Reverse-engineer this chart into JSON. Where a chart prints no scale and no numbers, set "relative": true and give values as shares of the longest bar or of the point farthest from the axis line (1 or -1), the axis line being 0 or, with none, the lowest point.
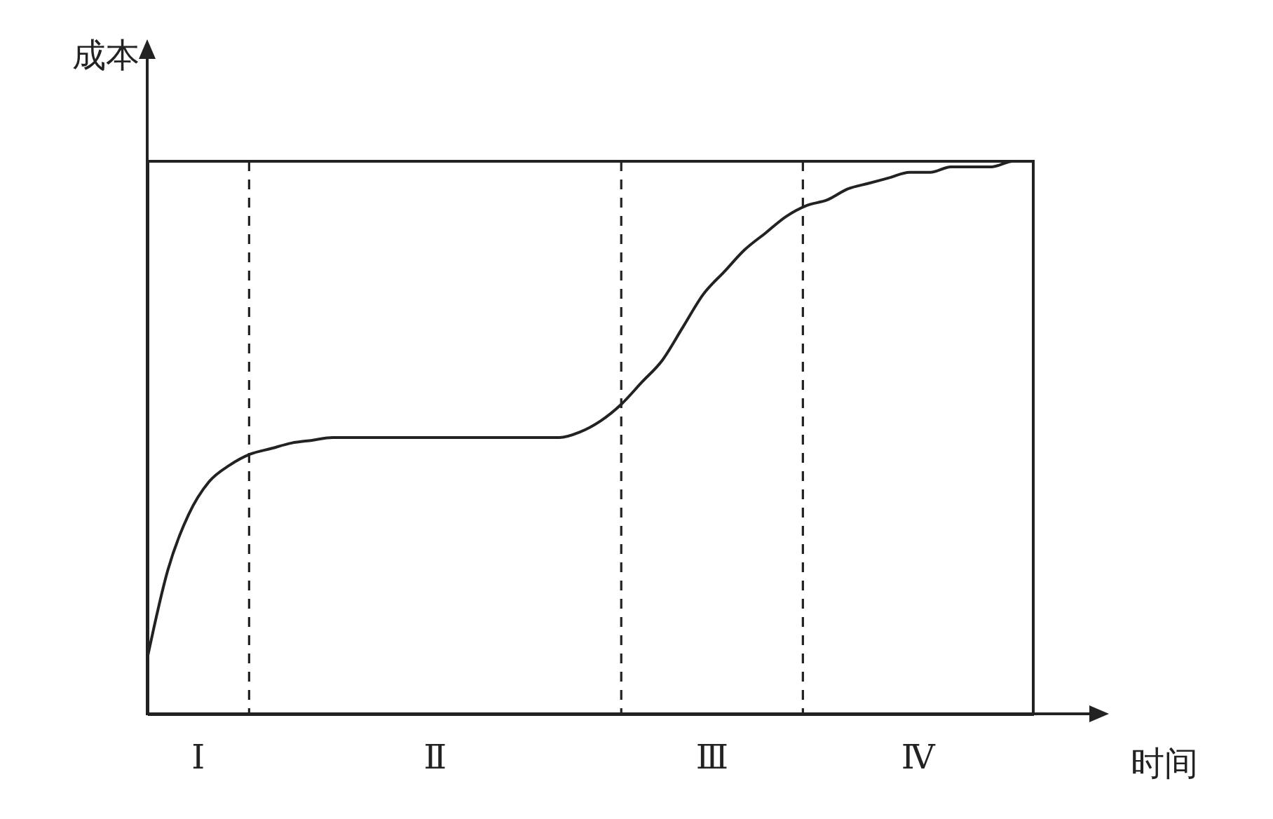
{
  "chart_data": {
    "type": "line",
    "relative": true,
    "xlabel": "时间",
    "ylabel": "成本",
    "marker": "none",
    "line_style": "solid",
    "categories": [
      null,
      null,
      null,
      null,
      null,
      null,
      null,
      null,
      null,
      null,
      null,
      null,
      null,
      null,
      null,
      null,
      null,
      null,
      null,
      null,
      null,
      null,
      null,
      null,
      null,
      null,
      null,
      null,
      null,
      null,
      null,
      null,
      null,
      null,
      null,
      null,
      null,
      null,
      null,
      null,
      null,
      null,
      null,
      null
    ],
    "series": [
      {
        "color": "#222222",
        "values": [
          0.1,
          0.26,
          0.36,
          0.42,
          0.45,
          0.47,
          0.48,
          0.49,
          0.495,
          0.5,
          0.5,
          0.5,
          0.5,
          0.5,
          0.5,
          0.5,
          0.5,
          0.5,
          0.5,
          0.5,
          0.5,
          0.51,
          0.53,
          0.56,
          0.6,
          0.64,
          0.7,
          0.76,
          0.8,
          0.84,
          0.87,
          0.9,
          0.92,
          0.93,
          0.95,
          0.96,
          0.97,
          0.98,
          0.98,
          0.99,
          0.99,
          0.99,
          1,
          1
        ]
      }
    ],
    "annotations": [
      "Ⅰ",
      "Ⅱ",
      "Ⅲ",
      "Ⅳ"
    ]
  }
}
